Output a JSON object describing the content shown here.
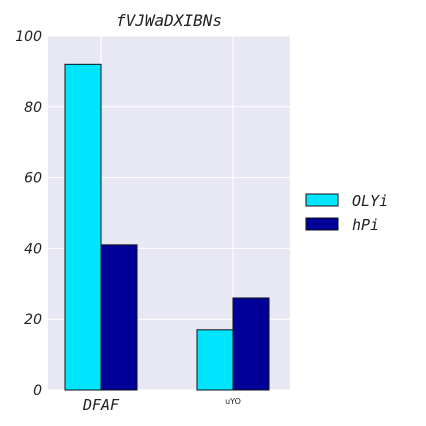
{
  "chart_data": {
    "type": "bar",
    "title": "fVJWaDXIBNs",
    "categories": [
      "DFAF",
      "uYO"
    ],
    "series": [
      {
        "name": "OLYi",
        "values": [
          92,
          17
        ],
        "color": "#00e5ff"
      },
      {
        "name": "hPi",
        "values": [
          41,
          26
        ],
        "color": "#000099"
      }
    ],
    "ylim": [
      0,
      100
    ],
    "yticks": [
      "0",
      "20",
      "40",
      "60",
      "80",
      "100"
    ],
    "grid": true,
    "legend_position": "right",
    "plot_background": "#e8e8f4"
  }
}
